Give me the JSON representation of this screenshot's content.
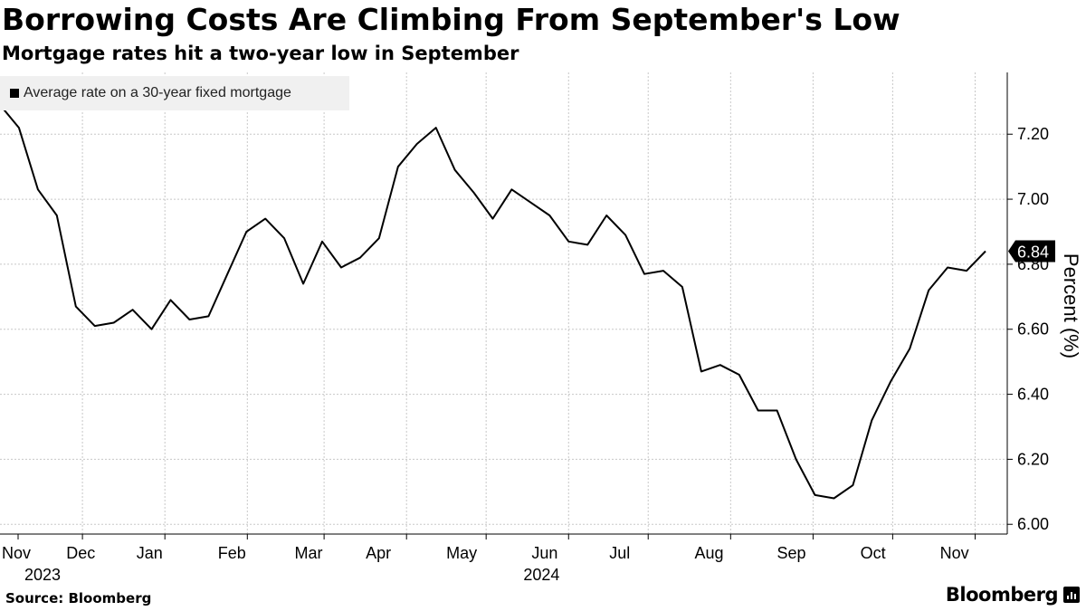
{
  "header": {
    "title": "Borrowing Costs Are Climbing From September's Low",
    "subtitle": "Mortgage rates hit a two-year low in September"
  },
  "footer": {
    "source": "Source: Bloomberg",
    "brand": "Bloomberg",
    "brand_icon": "bar-chart-icon"
  },
  "colors": {
    "line": "#000000",
    "grid": "#c8c8c8",
    "legend_bg": "#f0f0f0",
    "label_badge": "#000000"
  },
  "chart_data": {
    "type": "line",
    "title": "Borrowing Costs Are Climbing From September's Low",
    "subtitle": "Mortgage rates hit a two-year low in September",
    "ylabel": "Percent (%)",
    "ylim": [
      5.97,
      7.39
    ],
    "yticks": [
      "6.00",
      "6.20",
      "6.40",
      "6.60",
      "6.80",
      "7.00",
      "7.20"
    ],
    "ytick_values": [
      6.0,
      6.2,
      6.4,
      6.6,
      6.8,
      7.0,
      7.2
    ],
    "y_axis_side": "right",
    "grid": true,
    "legend_position": "top-left",
    "xticks": [
      {
        "label": "Nov",
        "year": "2023"
      },
      {
        "label": "Dec",
        "year": ""
      },
      {
        "label": "Jan",
        "year": ""
      },
      {
        "label": "Feb",
        "year": ""
      },
      {
        "label": "Mar",
        "year": ""
      },
      {
        "label": "Apr",
        "year": ""
      },
      {
        "label": "May",
        "year": ""
      },
      {
        "label": "Jun",
        "year": "2024"
      },
      {
        "label": "Jul",
        "year": ""
      },
      {
        "label": "Aug",
        "year": ""
      },
      {
        "label": "Sep",
        "year": ""
      },
      {
        "label": "Oct",
        "year": ""
      },
      {
        "label": "Nov",
        "year": ""
      }
    ],
    "last_value_label": "6.84",
    "series": [
      {
        "name": "Average rate on a 30-year fixed mortgage",
        "values": [
          7.29,
          7.22,
          7.03,
          6.95,
          6.67,
          6.61,
          6.62,
          6.66,
          6.6,
          6.69,
          6.63,
          6.64,
          6.77,
          6.9,
          6.94,
          6.88,
          6.74,
          6.87,
          6.79,
          6.82,
          6.88,
          7.1,
          7.17,
          7.22,
          7.09,
          7.02,
          6.94,
          7.03,
          6.99,
          6.95,
          6.87,
          6.86,
          6.95,
          6.89,
          6.77,
          6.78,
          6.73,
          6.47,
          6.49,
          6.46,
          6.35,
          6.35,
          6.2,
          6.09,
          6.08,
          6.12,
          6.32,
          6.44,
          6.54,
          6.72,
          6.79,
          6.78,
          6.84
        ]
      }
    ]
  }
}
